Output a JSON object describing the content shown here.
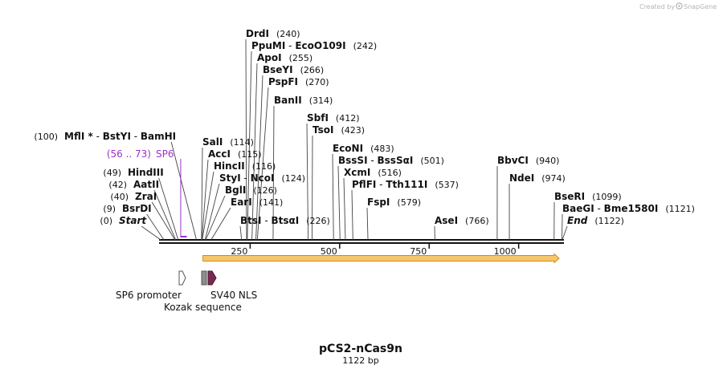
{
  "credit": {
    "text": "Created by",
    "brand": "SnapGene",
    "icon": "snapgene-logo-icon"
  },
  "plasmid": {
    "name": "pCS2-nCas9n",
    "length_label": "1122 bp",
    "length_bp": 1122
  },
  "colors": {
    "line": "#111111",
    "orf_fill": "#f5c76a",
    "orf_border": "#d38a1f",
    "primer": "#9b33c8",
    "nls": "#7a2a52",
    "kozak": "#8e8e8e",
    "promoter": "#ffffff"
  },
  "ticks": [
    {
      "label": "250",
      "bp": 250
    },
    {
      "label": "500",
      "bp": 500
    },
    {
      "label": "750",
      "bp": 750
    },
    {
      "label": "1000",
      "bp": 1000
    }
  ],
  "primer": {
    "name": "SP6",
    "range": "(56 .. 73)",
    "start_bp": 56,
    "end_bp": 73
  },
  "features": [
    {
      "name": "SP6 promoter",
      "type": "promoter",
      "start_bp": 52,
      "end_bp": 70
    },
    {
      "name": "Kozak sequence",
      "type": "kozak",
      "start_bp": 102,
      "end_bp": 111
    },
    {
      "name": "SV40 NLS",
      "type": "nls",
      "start_bp": 115,
      "end_bp": 136
    }
  ],
  "orf": {
    "start_bp": 118,
    "end_bp": 1113
  },
  "sites": [
    {
      "parts": [
        {
          "t": "DrdI"
        }
      ],
      "pos": "(240)",
      "bp": 240,
      "side": "top"
    },
    {
      "parts": [
        {
          "t": "PpuMI"
        },
        {
          "t": "EcoO109I"
        }
      ],
      "pos": "(242)",
      "bp": 242,
      "side": "top"
    },
    {
      "parts": [
        {
          "t": "ApoI"
        }
      ],
      "pos": "(255)",
      "bp": 255,
      "side": "top"
    },
    {
      "parts": [
        {
          "t": "BseYI"
        }
      ],
      "pos": "(266)",
      "bp": 266,
      "side": "top"
    },
    {
      "parts": [
        {
          "t": "PspFI"
        }
      ],
      "pos": "(270)",
      "bp": 270,
      "side": "top"
    },
    {
      "parts": [
        {
          "t": "BanII"
        }
      ],
      "pos": "(314)",
      "bp": 314,
      "side": "top"
    },
    {
      "parts": [
        {
          "t": "SbfI"
        }
      ],
      "pos": "(412)",
      "bp": 412,
      "side": "top"
    },
    {
      "parts": [
        {
          "t": "TsoI"
        }
      ],
      "pos": "(423)",
      "bp": 423,
      "side": "top"
    },
    {
      "parts": [
        {
          "t": "EcoNI"
        }
      ],
      "pos": "(483)",
      "bp": 483,
      "side": "top"
    },
    {
      "parts": [
        {
          "t": "BssSI"
        },
        {
          "t": "BssSαI"
        }
      ],
      "pos": "(501)",
      "bp": 501,
      "side": "top"
    },
    {
      "parts": [
        {
          "t": "XcmI"
        }
      ],
      "pos": "(516)",
      "bp": 516,
      "side": "top"
    },
    {
      "parts": [
        {
          "t": "PflFI"
        },
        {
          "t": "Tth111I"
        }
      ],
      "pos": "(537)",
      "bp": 537,
      "side": "top"
    },
    {
      "parts": [
        {
          "t": "FspI"
        }
      ],
      "pos": "(579)",
      "bp": 579,
      "side": "top"
    },
    {
      "parts": [
        {
          "t": "AseI"
        }
      ],
      "pos": "(766)",
      "bp": 766,
      "side": "top"
    },
    {
      "parts": [
        {
          "t": "BbvCI"
        }
      ],
      "pos": "(940)",
      "bp": 940,
      "side": "top"
    },
    {
      "parts": [
        {
          "t": "NdeI"
        }
      ],
      "pos": "(974)",
      "bp": 974,
      "side": "top"
    },
    {
      "parts": [
        {
          "t": "BseRI"
        }
      ],
      "pos": "(1099)",
      "bp": 1099,
      "side": "top"
    },
    {
      "parts": [
        {
          "t": "BaeGI"
        },
        {
          "t": "Bme1580I"
        }
      ],
      "pos": "(1121)",
      "bp": 1121,
      "side": "top"
    },
    {
      "parts": [
        {
          "t": "End",
          "italic": true
        }
      ],
      "pos": "(1122)",
      "bp": 1122,
      "side": "top"
    },
    {
      "parts": [
        {
          "t": "SalI"
        }
      ],
      "pos": "(114)",
      "bp": 114,
      "side": "top"
    },
    {
      "parts": [
        {
          "t": "AccI"
        }
      ],
      "pos": "(115)",
      "bp": 115,
      "side": "top"
    },
    {
      "parts": [
        {
          "t": "HincII"
        }
      ],
      "pos": "(116)",
      "bp": 116,
      "side": "top"
    },
    {
      "parts": [
        {
          "t": "StyI"
        },
        {
          "t": "NcoI"
        }
      ],
      "pos": "(124)",
      "bp": 124,
      "side": "top"
    },
    {
      "parts": [
        {
          "t": "BglI"
        }
      ],
      "pos": "(126)",
      "bp": 126,
      "side": "top"
    },
    {
      "parts": [
        {
          "t": "EarI"
        }
      ],
      "pos": "(141)",
      "bp": 141,
      "side": "top"
    },
    {
      "parts": [
        {
          "t": "BtsI"
        },
        {
          "t": "BtsαI"
        }
      ],
      "pos": "(226)",
      "bp": 226,
      "side": "top"
    },
    {
      "parts": [
        {
          "t": "MflI *"
        },
        {
          "t": "BstYI"
        },
        {
          "t": "BamHI"
        }
      ],
      "pos": "(100)",
      "bp": 100,
      "side": "left"
    },
    {
      "parts": [
        {
          "t": "HindIII"
        }
      ],
      "pos": "(49)",
      "bp": 49,
      "side": "left"
    },
    {
      "parts": [
        {
          "t": "AatII"
        }
      ],
      "pos": "(42)",
      "bp": 42,
      "side": "left"
    },
    {
      "parts": [
        {
          "t": "ZraI"
        }
      ],
      "pos": "(40)",
      "bp": 40,
      "side": "left"
    },
    {
      "parts": [
        {
          "t": "BsrDI"
        }
      ],
      "pos": "(9)",
      "bp": 9,
      "side": "left"
    },
    {
      "parts": [
        {
          "t": "Start",
          "italic": true
        }
      ],
      "pos": "(0)",
      "bp": 0,
      "side": "left"
    }
  ]
}
